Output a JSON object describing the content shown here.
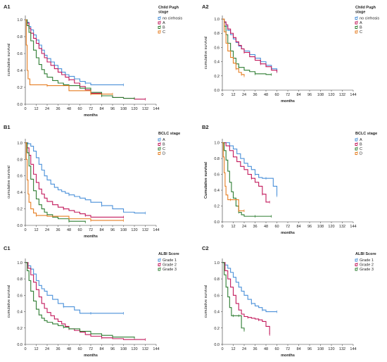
{
  "chart_data": [
    {
      "panel": "A1",
      "type": "line",
      "xlabel": "months",
      "ylabel": "cumulative survival",
      "xticks": [
        0,
        12,
        24,
        36,
        48,
        60,
        72,
        84,
        96,
        108,
        120,
        132,
        144
      ],
      "yticks": [
        "0.0",
        "0.2",
        "0.4",
        "0.6",
        "0.8",
        "1.0"
      ],
      "xlim": [
        0,
        144
      ],
      "ylim": [
        0,
        1.05
      ],
      "legend_title": "Child Pugh stage",
      "series": [
        {
          "name": "no cirrhosis",
          "color": "#4a90d9",
          "x": [
            0,
            2,
            4,
            6,
            9,
            12,
            15,
            18,
            21,
            24,
            28,
            32,
            36,
            40,
            44,
            48,
            54,
            60,
            66,
            72,
            84,
            96,
            108
          ],
          "y": [
            1.0,
            0.97,
            0.92,
            0.88,
            0.82,
            0.76,
            0.7,
            0.64,
            0.58,
            0.54,
            0.5,
            0.46,
            0.42,
            0.38,
            0.35,
            0.33,
            0.3,
            0.27,
            0.25,
            0.23,
            0.23,
            0.23,
            0.23
          ]
        },
        {
          "name": "A",
          "color": "#c2185b",
          "x": [
            0,
            2,
            4,
            6,
            9,
            12,
            15,
            18,
            21,
            24,
            28,
            32,
            36,
            40,
            44,
            48,
            54,
            60,
            66,
            72,
            84,
            96,
            108,
            120,
            132
          ],
          "y": [
            1.0,
            0.96,
            0.9,
            0.84,
            0.78,
            0.72,
            0.66,
            0.6,
            0.55,
            0.5,
            0.46,
            0.42,
            0.38,
            0.35,
            0.32,
            0.29,
            0.25,
            0.21,
            0.17,
            0.13,
            0.1,
            0.08,
            0.07,
            0.06,
            0.06
          ]
        },
        {
          "name": "B",
          "color": "#2e7d32",
          "x": [
            0,
            2,
            4,
            6,
            9,
            12,
            15,
            18,
            21,
            24,
            30,
            36,
            42,
            48,
            60,
            72,
            84,
            96,
            108,
            120
          ],
          "y": [
            1.0,
            0.93,
            0.85,
            0.75,
            0.64,
            0.55,
            0.47,
            0.41,
            0.36,
            0.32,
            0.28,
            0.25,
            0.23,
            0.22,
            0.19,
            0.14,
            0.1,
            0.08,
            0.07,
            0.07
          ]
        },
        {
          "name": "C",
          "color": "#e67e22",
          "x": [
            0,
            1,
            2,
            3,
            5,
            24,
            48,
            72,
            96
          ],
          "y": [
            1.0,
            0.7,
            0.4,
            0.3,
            0.23,
            0.22,
            0.16,
            0.12,
            0.12
          ]
        }
      ]
    },
    {
      "panel": "A2",
      "type": "line",
      "xlabel": "months",
      "ylabel": "cumulative survival",
      "xticks": [
        0,
        12,
        24,
        36,
        48,
        60,
        72,
        84,
        96,
        108,
        120,
        132,
        144
      ],
      "yticks": [
        "0.0",
        "0.2",
        "0.4",
        "0.6",
        "0.8",
        "1.0"
      ],
      "xlim": [
        0,
        144
      ],
      "ylim": [
        0,
        1.05
      ],
      "legend_title": "Child Pugh stage",
      "series": [
        {
          "name": "no cirrhosis",
          "color": "#4a90d9",
          "x": [
            0,
            2,
            4,
            6,
            9,
            12,
            15,
            18,
            21,
            24,
            30,
            36,
            42,
            48,
            54,
            60
          ],
          "y": [
            1.0,
            0.95,
            0.9,
            0.84,
            0.78,
            0.72,
            0.67,
            0.62,
            0.58,
            0.55,
            0.5,
            0.45,
            0.4,
            0.35,
            0.3,
            0.26
          ]
        },
        {
          "name": "A",
          "color": "#c2185b",
          "x": [
            0,
            2,
            4,
            6,
            9,
            12,
            15,
            18,
            21,
            24,
            30,
            36,
            42,
            48,
            54,
            60
          ],
          "y": [
            1.0,
            0.96,
            0.92,
            0.86,
            0.8,
            0.74,
            0.68,
            0.63,
            0.58,
            0.53,
            0.47,
            0.42,
            0.37,
            0.33,
            0.28,
            0.26
          ]
        },
        {
          "name": "B",
          "color": "#2e7d32",
          "x": [
            0,
            2,
            4,
            6,
            9,
            12,
            15,
            18,
            24,
            30,
            36,
            48,
            54
          ],
          "y": [
            1.0,
            0.9,
            0.78,
            0.66,
            0.55,
            0.45,
            0.37,
            0.32,
            0.28,
            0.26,
            0.23,
            0.22,
            0.22
          ]
        },
        {
          "name": "C",
          "color": "#e67e22",
          "x": [
            0,
            2,
            4,
            6,
            9,
            12,
            15,
            18,
            21,
            24
          ],
          "y": [
            1.0,
            0.82,
            0.66,
            0.55,
            0.46,
            0.38,
            0.3,
            0.25,
            0.22,
            0.2
          ]
        }
      ]
    },
    {
      "panel": "B1",
      "type": "line",
      "xlabel": "months",
      "ylabel": "cumulative survival",
      "xticks": [
        0,
        12,
        24,
        36,
        48,
        60,
        72,
        84,
        96,
        108,
        120,
        132,
        144
      ],
      "yticks": [
        "0.0",
        "0.2",
        "0.4",
        "0.6",
        "0.8",
        "1.0"
      ],
      "xlim": [
        0,
        144
      ],
      "ylim": [
        0,
        1.05
      ],
      "legend_title": "BCLC stage",
      "series": [
        {
          "name": "A",
          "color": "#4a90d9",
          "x": [
            0,
            3,
            6,
            9,
            12,
            15,
            18,
            21,
            24,
            28,
            32,
            36,
            40,
            44,
            48,
            54,
            60,
            66,
            72,
            84,
            96,
            108,
            120,
            132
          ],
          "y": [
            1.0,
            0.99,
            0.96,
            0.9,
            0.82,
            0.74,
            0.67,
            0.6,
            0.55,
            0.5,
            0.46,
            0.43,
            0.41,
            0.39,
            0.37,
            0.35,
            0.33,
            0.31,
            0.28,
            0.24,
            0.2,
            0.16,
            0.15,
            0.15
          ]
        },
        {
          "name": "B",
          "color": "#c2185b",
          "x": [
            0,
            2,
            4,
            6,
            9,
            12,
            15,
            18,
            21,
            24,
            30,
            36,
            42,
            48,
            54,
            60,
            66,
            72,
            84,
            96,
            108
          ],
          "y": [
            1.0,
            0.94,
            0.85,
            0.74,
            0.62,
            0.52,
            0.44,
            0.38,
            0.33,
            0.29,
            0.25,
            0.22,
            0.2,
            0.18,
            0.16,
            0.14,
            0.12,
            0.1,
            0.1,
            0.1,
            0.1
          ]
        },
        {
          "name": "C",
          "color": "#2e7d32",
          "x": [
            0,
            2,
            4,
            6,
            9,
            12,
            15,
            18,
            21,
            24,
            30,
            36,
            48,
            60,
            66
          ],
          "y": [
            1.0,
            0.88,
            0.72,
            0.56,
            0.42,
            0.32,
            0.25,
            0.2,
            0.16,
            0.13,
            0.1,
            0.08,
            0.05,
            0.05,
            0.04
          ]
        },
        {
          "name": "D",
          "color": "#e67e22",
          "x": [
            0,
            1,
            2,
            3,
            4,
            6,
            9,
            12,
            24,
            48,
            72,
            96,
            108
          ],
          "y": [
            1.0,
            0.8,
            0.55,
            0.38,
            0.28,
            0.2,
            0.15,
            0.12,
            0.11,
            0.08,
            0.06,
            0.06,
            0.06
          ]
        }
      ]
    },
    {
      "panel": "B2",
      "type": "line",
      "xlabel": "months",
      "ylabel": "Cumulative survival",
      "xticks": [
        0,
        12,
        24,
        36,
        48,
        60,
        72,
        84,
        96,
        108,
        120,
        132,
        144
      ],
      "yticks": [
        "0.0",
        "0.2",
        "0.4",
        "0.6",
        "0.8",
        "1.0"
      ],
      "xlim": [
        0,
        144
      ],
      "ylim": [
        0,
        1.05
      ],
      "legend_title": "BCLC stage",
      "series": [
        {
          "name": "A",
          "color": "#4a90d9",
          "x": [
            0,
            4,
            8,
            12,
            16,
            20,
            24,
            28,
            32,
            36,
            40,
            44,
            48,
            52,
            56,
            60
          ],
          "y": [
            1.0,
            1.0,
            0.96,
            0.92,
            0.86,
            0.8,
            0.74,
            0.7,
            0.66,
            0.6,
            0.56,
            0.55,
            0.55,
            0.55,
            0.45,
            0.33
          ]
        },
        {
          "name": "B",
          "color": "#c2185b",
          "x": [
            0,
            4,
            8,
            12,
            16,
            20,
            24,
            28,
            32,
            36,
            40,
            44,
            48,
            52
          ],
          "y": [
            1.0,
            0.96,
            0.9,
            0.82,
            0.76,
            0.7,
            0.66,
            0.6,
            0.55,
            0.5,
            0.45,
            0.35,
            0.25,
            0.25
          ]
        },
        {
          "name": "C",
          "color": "#2e7d32",
          "x": [
            0,
            2,
            4,
            6,
            8,
            10,
            12,
            15,
            18,
            21,
            24,
            36,
            48,
            54
          ],
          "y": [
            1.0,
            0.9,
            0.78,
            0.64,
            0.5,
            0.38,
            0.3,
            0.2,
            0.12,
            0.09,
            0.07,
            0.07,
            0.07,
            0.07
          ]
        },
        {
          "name": "D",
          "color": "#e67e22",
          "x": [
            0,
            1,
            2,
            3,
            4,
            6,
            9,
            12,
            18,
            24
          ],
          "y": [
            1.0,
            0.82,
            0.62,
            0.45,
            0.34,
            0.28,
            0.28,
            0.28,
            0.14,
            0.14
          ]
        }
      ]
    },
    {
      "panel": "C1",
      "type": "line",
      "xlabel": "months",
      "ylabel": "cumulative survival",
      "xticks": [
        0,
        12,
        24,
        36,
        48,
        60,
        72,
        84,
        96,
        108,
        120,
        132,
        144
      ],
      "yticks": [
        "0.0",
        "0.2",
        "0.4",
        "0.6",
        "0.8",
        "1.0"
      ],
      "xlim": [
        0,
        144
      ],
      "ylim": [
        0,
        1.05
      ],
      "legend_title": "ALBI Score",
      "series": [
        {
          "name": "Grade 1",
          "color": "#4a90d9",
          "x": [
            0,
            3,
            6,
            9,
            12,
            15,
            18,
            21,
            24,
            30,
            36,
            42,
            48,
            54,
            60,
            72,
            84,
            96,
            108
          ],
          "y": [
            1.0,
            0.96,
            0.92,
            0.86,
            0.78,
            0.72,
            0.68,
            0.65,
            0.6,
            0.55,
            0.5,
            0.46,
            0.46,
            0.42,
            0.38,
            0.38,
            0.38,
            0.38,
            0.38
          ]
        },
        {
          "name": "Grade 2",
          "color": "#c2185b",
          "x": [
            0,
            3,
            6,
            9,
            12,
            15,
            18,
            21,
            24,
            28,
            32,
            36,
            40,
            44,
            48,
            54,
            60,
            66,
            72,
            84,
            96,
            108,
            120,
            132
          ],
          "y": [
            1.0,
            0.93,
            0.85,
            0.76,
            0.67,
            0.58,
            0.5,
            0.44,
            0.39,
            0.35,
            0.31,
            0.28,
            0.25,
            0.22,
            0.19,
            0.17,
            0.15,
            0.12,
            0.1,
            0.08,
            0.07,
            0.06,
            0.06,
            0.06
          ]
        },
        {
          "name": "Grade 3",
          "color": "#2e7d32",
          "x": [
            0,
            2,
            4,
            6,
            9,
            12,
            15,
            18,
            21,
            24,
            30,
            36,
            42,
            48,
            60,
            72,
            84,
            96,
            108,
            120
          ],
          "y": [
            1.0,
            0.9,
            0.78,
            0.65,
            0.53,
            0.43,
            0.36,
            0.32,
            0.29,
            0.27,
            0.25,
            0.23,
            0.21,
            0.19,
            0.16,
            0.13,
            0.11,
            0.09,
            0.09,
            0.08
          ]
        }
      ]
    },
    {
      "panel": "C2",
      "type": "line",
      "xlabel": "months",
      "ylabel": "cumulative survival",
      "xticks": [
        0,
        12,
        24,
        36,
        48,
        60,
        72,
        84,
        96,
        108,
        120,
        132,
        144
      ],
      "yticks": [
        "0.0",
        "0.2",
        "0.4",
        "0.6",
        "0.8",
        "1.0"
      ],
      "xlim": [
        0,
        144
      ],
      "ylim": [
        0,
        1.05
      ],
      "legend_title": "ALBI Score",
      "series": [
        {
          "name": "Grade 1",
          "color": "#4a90d9",
          "x": [
            0,
            3,
            6,
            9,
            12,
            15,
            18,
            21,
            24,
            28,
            32,
            36,
            40,
            44,
            48,
            54,
            60
          ],
          "y": [
            1.0,
            0.97,
            0.93,
            0.88,
            0.82,
            0.76,
            0.7,
            0.65,
            0.6,
            0.55,
            0.5,
            0.47,
            0.45,
            0.42,
            0.4,
            0.4,
            0.4
          ]
        },
        {
          "name": "Grade 2",
          "color": "#c2185b",
          "x": [
            0,
            3,
            6,
            9,
            12,
            15,
            18,
            21,
            24,
            28,
            32,
            36,
            40,
            44,
            48,
            52
          ],
          "y": [
            1.0,
            0.9,
            0.8,
            0.7,
            0.6,
            0.5,
            0.42,
            0.37,
            0.34,
            0.33,
            0.32,
            0.31,
            0.3,
            0.28,
            0.22,
            0.12
          ]
        },
        {
          "name": "Grade 3",
          "color": "#2e7d32",
          "x": [
            0,
            2,
            4,
            6,
            8,
            10,
            12,
            15,
            18,
            21,
            24
          ],
          "y": [
            1.0,
            0.85,
            0.7,
            0.58,
            0.45,
            0.35,
            0.35,
            0.35,
            0.35,
            0.2,
            0.17
          ]
        }
      ]
    }
  ]
}
